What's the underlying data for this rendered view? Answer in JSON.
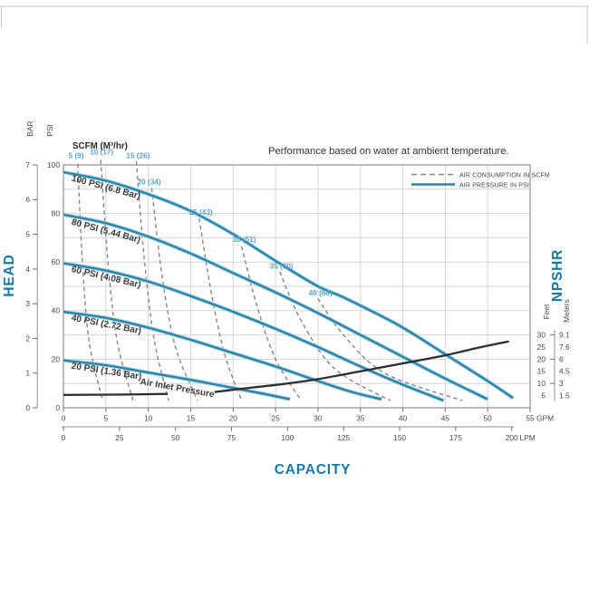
{
  "chart_data": {
    "type": "line",
    "title": "Performance based on water at ambient temperature.",
    "scfm_header": "SCFM (M³/hr)",
    "grid": {
      "x_step": 5,
      "y_step": 10,
      "grid_on": true
    },
    "x_axis": {
      "label": "CAPACITY",
      "primary": {
        "unit": "GPM",
        "range": [
          0,
          55
        ],
        "ticks": [
          0,
          5,
          10,
          15,
          20,
          25,
          30,
          35,
          40,
          45,
          50,
          55
        ]
      },
      "secondary": {
        "unit": "LPM",
        "range": [
          0,
          208
        ],
        "ticks": [
          0,
          25,
          50,
          75,
          100,
          125,
          150,
          175,
          200
        ]
      }
    },
    "y_axis": {
      "label": "HEAD",
      "psi": {
        "unit": "PSI",
        "range": [
          0,
          100
        ],
        "ticks": [
          0,
          20,
          40,
          60,
          80,
          100
        ]
      },
      "bar": {
        "unit": "BAR",
        "range": [
          0,
          7
        ],
        "ticks": [
          0,
          1,
          2,
          3,
          4,
          5,
          6,
          7
        ]
      }
    },
    "right_axis": {
      "label": "NPSHR",
      "feet": {
        "unit": "Feet",
        "ticks": [
          30,
          25,
          20,
          15,
          10,
          5
        ]
      },
      "meters": {
        "unit": "Meters",
        "ticks": [
          "9.1",
          "7.6",
          "6",
          "4.5",
          "3",
          "1.5"
        ]
      }
    },
    "legend": [
      {
        "label": "AIR CONSUMPTION IN SCFM",
        "style": "dashed",
        "color": "#868686"
      },
      {
        "label": "AIR PRESSURE IN PSI",
        "style": "solid",
        "color": "#2a84aa"
      }
    ],
    "air_pressure_curves": [
      {
        "label": "100 PSI (6.8 Bar)",
        "label_pos": [
          0.9,
          93.5
        ],
        "label_angle": 15,
        "points": [
          [
            0,
            97
          ],
          [
            5,
            93.5
          ],
          [
            10,
            88
          ],
          [
            15,
            81
          ],
          [
            20,
            71.5
          ],
          [
            25,
            60.5
          ],
          [
            30,
            50
          ],
          [
            33,
            45.5
          ],
          [
            39.5,
            34
          ],
          [
            45,
            22
          ],
          [
            50,
            11
          ],
          [
            53,
            4
          ]
        ]
      },
      {
        "label": "80 PSI (5.44 Bar)",
        "label_pos": [
          0.9,
          75.5
        ],
        "label_angle": 15,
        "points": [
          [
            0,
            79.5
          ],
          [
            5,
            76
          ],
          [
            10,
            70.5
          ],
          [
            15,
            63.5
          ],
          [
            20,
            55.5
          ],
          [
            25,
            47.5
          ],
          [
            30,
            39
          ],
          [
            35,
            30
          ],
          [
            40,
            21
          ],
          [
            45,
            12
          ],
          [
            50,
            3.5
          ]
        ]
      },
      {
        "label": "60 PSI (4.08 Bar)",
        "label_pos": [
          0.9,
          56
        ],
        "label_angle": 13,
        "points": [
          [
            0,
            59.5
          ],
          [
            5,
            56.5
          ],
          [
            10,
            52
          ],
          [
            15,
            46
          ],
          [
            20,
            39.5
          ],
          [
            25,
            32.5
          ],
          [
            30,
            25
          ],
          [
            35,
            17
          ],
          [
            40,
            9.5
          ],
          [
            44.8,
            3
          ]
        ]
      },
      {
        "label": "40 PSI (2.72 Bar)",
        "label_pos": [
          0.9,
          36
        ],
        "label_angle": 11,
        "points": [
          [
            0,
            39.5
          ],
          [
            5,
            37
          ],
          [
            10,
            33
          ],
          [
            15,
            28
          ],
          [
            20,
            22.5
          ],
          [
            25,
            17
          ],
          [
            30,
            11
          ],
          [
            34,
            6.5
          ],
          [
            37.5,
            3.5
          ]
        ]
      },
      {
        "label": "20 PSI (1.36 Bar)",
        "label_pos": [
          0.9,
          16.2
        ],
        "label_angle": 9,
        "points": [
          [
            0,
            19.5
          ],
          [
            5,
            17.5
          ],
          [
            10,
            14.5
          ],
          [
            15,
            11.5
          ],
          [
            18,
            9.5
          ],
          [
            21,
            7.5
          ],
          [
            24,
            5.5
          ],
          [
            26.7,
            3.5
          ]
        ]
      }
    ],
    "annotation": {
      "text": "Air Inlet Pressure",
      "pos": [
        9.0,
        9.7
      ],
      "angle": 10
    },
    "air_consumption_curves": [
      {
        "label": "5 (9)",
        "label_pos": [
          1.5,
          102.8
        ],
        "points": [
          [
            1.7,
            100.5
          ],
          [
            2.2,
            62
          ],
          [
            3.0,
            28
          ],
          [
            4.6,
            3
          ]
        ]
      },
      {
        "label": "10 (17)",
        "label_pos": [
          4.5,
          104.3
        ],
        "points": [
          [
            4.4,
            102
          ],
          [
            5.2,
            62
          ],
          [
            6.3,
            28
          ],
          [
            8.2,
            3
          ]
        ]
      },
      {
        "label": "15 (26)",
        "label_pos": [
          8.8,
          102.8
        ],
        "points": [
          [
            8.6,
            101.5
          ],
          [
            9.5,
            62
          ],
          [
            10.7,
            28
          ],
          [
            12.4,
            3
          ]
        ]
      },
      {
        "label": "20 (34)",
        "label_pos": [
          10.1,
          92
        ],
        "points": [
          [
            10.4,
            90.5
          ],
          [
            11.6,
            55
          ],
          [
            13.2,
            25
          ],
          [
            15.8,
            3
          ]
        ]
      },
      {
        "label": "25 (43)",
        "label_pos": [
          16.2,
          79.5
        ],
        "points": [
          [
            16,
            78
          ],
          [
            17.4,
            48
          ],
          [
            19,
            22
          ],
          [
            21,
            3
          ]
        ]
      },
      {
        "label": "30 (51)",
        "label_pos": [
          21.3,
          68.2
        ],
        "points": [
          [
            21,
            66.5
          ],
          [
            22.8,
            42
          ],
          [
            25,
            20
          ],
          [
            28,
            3
          ]
        ]
      },
      {
        "label": "35 (60)",
        "label_pos": [
          25.7,
          57.3
        ],
        "points": [
          [
            25.5,
            56
          ],
          [
            28,
            36
          ],
          [
            32,
            16
          ],
          [
            38.5,
            3
          ]
        ]
      },
      {
        "label": "40 (68)",
        "label_pos": [
          30.3,
          46.3
        ],
        "points": [
          [
            30,
            45
          ],
          [
            33,
            30
          ],
          [
            38,
            14
          ],
          [
            47,
            3
          ]
        ]
      }
    ],
    "npshr_curve": {
      "segments": [
        [
          [
            0,
            5.3
          ],
          [
            6,
            5.4
          ],
          [
            12.3,
            5.7
          ]
        ],
        [
          [
            17.8,
            6.5
          ],
          [
            22.4,
            8.4
          ],
          [
            26,
            9.8
          ],
          [
            30,
            11.8
          ],
          [
            35,
            15
          ],
          [
            40,
            18.3
          ],
          [
            45,
            21.6
          ],
          [
            49,
            24.8
          ],
          [
            52.5,
            27.3
          ]
        ]
      ]
    }
  }
}
